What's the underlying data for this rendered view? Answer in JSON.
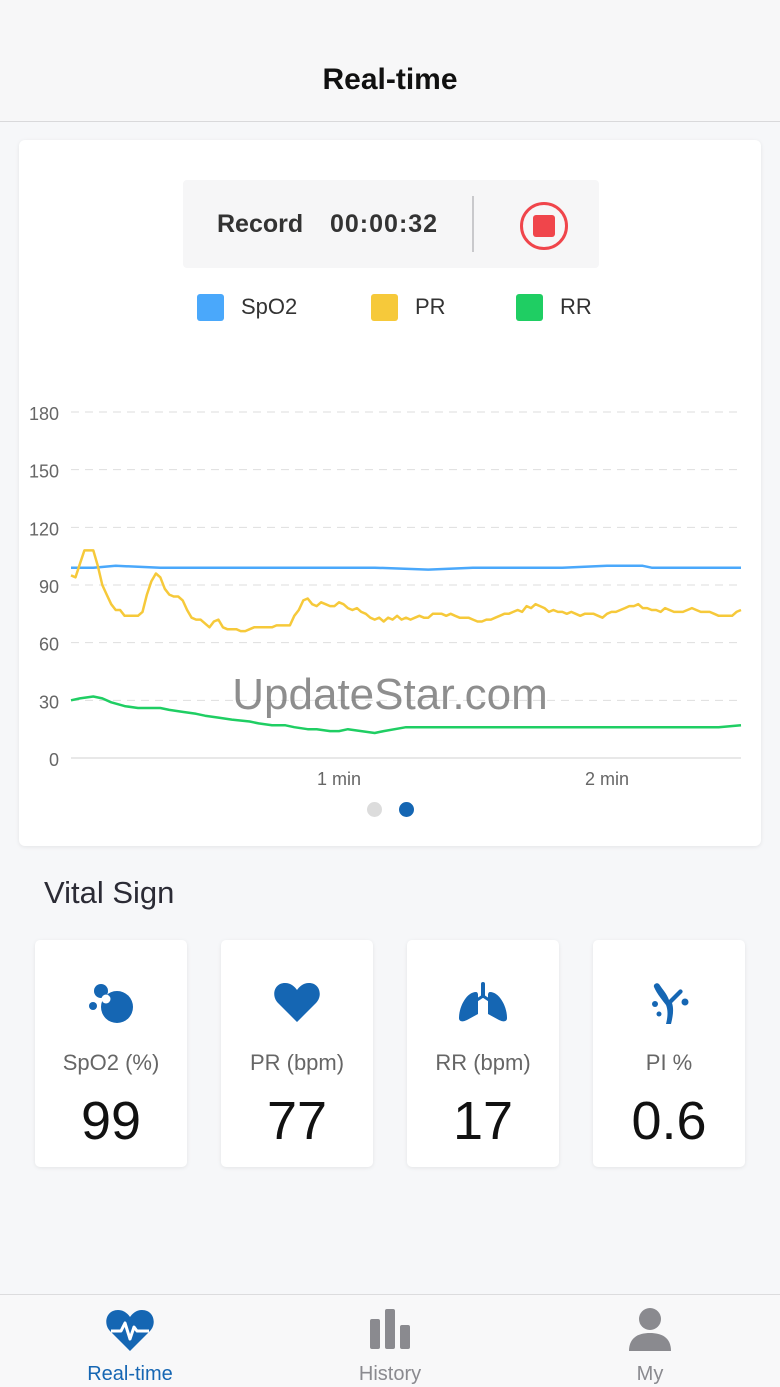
{
  "header": {
    "title": "Real-time"
  },
  "record": {
    "label": "Record",
    "time": "00:00:32"
  },
  "colors": {
    "spo2": "#4aa8fb",
    "pr": "#f6c93a",
    "rr": "#1fce63",
    "accent": "#1566b3",
    "inactive": "#8a8a8f",
    "stop": "#f0454b"
  },
  "legend": [
    {
      "label": "SpO2",
      "color": "#4aa8fb"
    },
    {
      "label": "PR",
      "color": "#f6c93a"
    },
    {
      "label": "RR",
      "color": "#1fce63"
    }
  ],
  "chart_data": {
    "type": "line",
    "ylim": [
      0,
      180
    ],
    "y_ticks": [
      0,
      30,
      60,
      90,
      120,
      150,
      180
    ],
    "x_tick_labels": [
      "1 min",
      "2 min"
    ],
    "x_tick_positions_seconds": [
      60,
      120
    ],
    "xlim_seconds": [
      0,
      150
    ],
    "grid": true,
    "legend_position": "top",
    "series": [
      {
        "name": "SpO2",
        "x": [
          0,
          5,
          10,
          20,
          40,
          60,
          64,
          68,
          80,
          90,
          100,
          102,
          110,
          120,
          128,
          130,
          140,
          150
        ],
        "y": [
          99,
          99,
          100,
          99,
          99,
          99,
          99,
          99,
          98,
          99,
          99,
          99,
          99,
          100,
          100,
          99,
          99,
          99
        ]
      },
      {
        "name": "PR",
        "x": [
          0,
          1,
          2,
          3,
          4,
          5,
          6,
          7,
          8,
          9,
          10,
          11,
          12,
          13,
          14,
          15,
          16,
          17,
          18,
          19,
          20,
          21,
          22,
          23,
          24,
          25,
          26,
          27,
          28,
          29,
          30,
          31,
          32,
          33,
          34,
          35,
          36,
          37,
          38,
          39,
          40,
          41,
          42,
          43,
          44,
          45,
          46,
          47,
          48,
          49,
          50,
          51,
          52,
          53,
          54,
          55,
          56,
          57,
          58,
          59,
          60,
          61,
          62,
          63,
          64,
          65,
          66,
          67,
          68,
          69,
          70,
          71,
          72,
          73,
          74,
          75,
          76,
          77,
          78,
          79,
          80,
          81,
          82,
          83,
          84,
          85,
          86,
          87,
          88,
          89,
          90,
          91,
          92,
          93,
          94,
          95,
          96,
          97,
          98,
          99,
          100,
          101,
          102,
          103,
          104,
          105,
          106,
          107,
          108,
          109,
          110,
          111,
          112,
          113,
          114,
          115,
          116,
          117,
          118,
          119,
          120,
          121,
          122,
          123,
          124,
          125,
          126,
          127,
          128,
          129,
          130,
          131,
          132,
          133,
          134,
          135,
          136,
          137,
          138,
          139,
          140,
          141,
          142,
          143,
          144,
          145,
          146,
          147,
          148,
          149,
          150
        ],
        "y": [
          95,
          94,
          101,
          108,
          108,
          108,
          100,
          90,
          85,
          80,
          77,
          77,
          74,
          74,
          74,
          74,
          76,
          85,
          92,
          96,
          94,
          88,
          85,
          84,
          84,
          82,
          77,
          73,
          72,
          72,
          70,
          68,
          71,
          72,
          68,
          67,
          67,
          67,
          66,
          66,
          67,
          68,
          68,
          68,
          68,
          68,
          69,
          69,
          69,
          69,
          74,
          77,
          82,
          83,
          80,
          79,
          81,
          80,
          79,
          79,
          81,
          80,
          78,
          77,
          78,
          76,
          75,
          73,
          72,
          73,
          71,
          73,
          72,
          74,
          72,
          73,
          72,
          73,
          74,
          73,
          73,
          75,
          75,
          75,
          74,
          75,
          74,
          73,
          73,
          73,
          72,
          71,
          71,
          72,
          72,
          73,
          74,
          75,
          75,
          76,
          77,
          76,
          79,
          78,
          80,
          79,
          78,
          76,
          77,
          76,
          76,
          75,
          76,
          75,
          74,
          75,
          75,
          75,
          74,
          73,
          75,
          76,
          76,
          77,
          78,
          79,
          79,
          80,
          78,
          78,
          77,
          77,
          76,
          78,
          77,
          76,
          76,
          76,
          77,
          78,
          77,
          76,
          76,
          76,
          75,
          74,
          74,
          74,
          74,
          76,
          77
        ]
      },
      {
        "name": "RR",
        "x": [
          0,
          2,
          5,
          7,
          9,
          12,
          15,
          18,
          20,
          22,
          25,
          28,
          30,
          33,
          36,
          40,
          42,
          45,
          48,
          50,
          53,
          55,
          58,
          60,
          62,
          65,
          68,
          70,
          75,
          80,
          85,
          90,
          95,
          100,
          105,
          110,
          115,
          120,
          125,
          130,
          135,
          140,
          145,
          150
        ],
        "y": [
          30,
          31,
          32,
          31,
          29,
          27,
          26,
          26,
          26,
          25,
          24,
          23,
          22,
          21,
          20,
          19,
          18,
          17,
          17,
          16,
          15,
          15,
          14,
          14,
          15,
          14,
          13,
          14,
          16,
          16,
          16,
          16,
          16,
          16,
          16,
          16,
          16,
          16,
          16,
          16,
          16,
          16,
          16,
          17
        ]
      }
    ]
  },
  "vital": {
    "title": "Vital Sign",
    "items": [
      {
        "label": "SpO2 (%)",
        "value": "99",
        "icon": "oxygen-bubbles-icon"
      },
      {
        "label": "PR (bpm)",
        "value": "77",
        "icon": "heart-icon"
      },
      {
        "label": "RR (bpm)",
        "value": "17",
        "icon": "lungs-icon"
      },
      {
        "label": "PI %",
        "value": "0.6",
        "icon": "perfusion-icon"
      }
    ]
  },
  "watermark": "UpdateStar.com",
  "tabs": [
    {
      "label": "Real-time",
      "icon": "heart-pulse-icon",
      "active": true
    },
    {
      "label": "History",
      "icon": "bar-chart-icon",
      "active": false
    },
    {
      "label": "My",
      "icon": "person-icon",
      "active": false
    }
  ]
}
